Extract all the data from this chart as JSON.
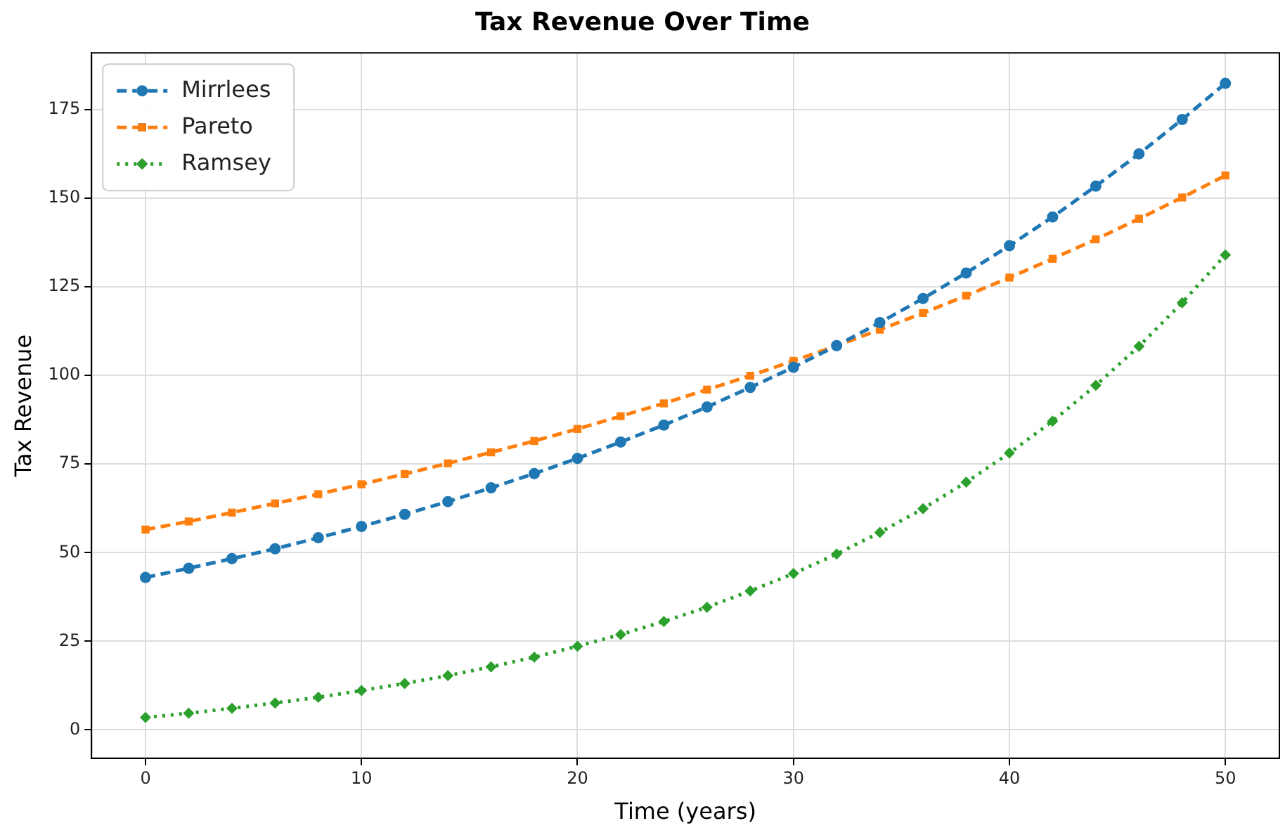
{
  "chart_data": {
    "type": "line",
    "title": "Tax Revenue Over Time",
    "xlabel": "Time (years)",
    "ylabel": "Tax Revenue",
    "x": [
      0,
      2,
      4,
      6,
      8,
      10,
      12,
      14,
      16,
      18,
      20,
      22,
      24,
      26,
      28,
      30,
      32,
      34,
      36,
      38,
      40,
      42,
      44,
      46,
      48,
      50
    ],
    "series": [
      {
        "name": "Mirrlees",
        "color": "#1f77b4",
        "marker": "circle",
        "line_style": "dashed",
        "values": [
          43.0,
          45.6,
          48.3,
          51.1,
          54.2,
          57.4,
          60.8,
          64.4,
          68.3,
          72.3,
          76.6,
          81.2,
          86.0,
          91.1,
          96.6,
          102.3,
          108.4,
          114.9,
          121.7,
          128.9,
          136.6,
          144.7,
          153.4,
          162.5,
          172.2,
          182.4
        ]
      },
      {
        "name": "Pareto",
        "color": "#ff7f0e",
        "marker": "square",
        "line_style": "dashed",
        "values": [
          56.5,
          58.8,
          61.3,
          63.9,
          66.5,
          69.3,
          72.2,
          75.2,
          78.3,
          81.5,
          84.9,
          88.5,
          92.1,
          96.0,
          99.9,
          104.1,
          108.4,
          112.9,
          117.6,
          122.5,
          127.6,
          132.9,
          138.4,
          144.2,
          150.2,
          156.4
        ]
      },
      {
        "name": "Ramsey",
        "color": "#2ca02c",
        "marker": "diamond",
        "line_style": "dotted",
        "values": [
          3.5,
          4.7,
          6.1,
          7.6,
          9.2,
          11.1,
          13.1,
          15.3,
          17.8,
          20.5,
          23.6,
          26.9,
          30.6,
          34.6,
          39.2,
          44.1,
          49.6,
          55.7,
          62.4,
          69.9,
          78.1,
          87.1,
          97.2,
          108.2,
          120.5,
          134.0
        ]
      }
    ],
    "xlim": [
      -2.5,
      52.5
    ],
    "xticks": [
      0,
      10,
      20,
      30,
      40,
      50
    ],
    "ylim": [
      -8,
      191
    ],
    "yticks": [
      0,
      25,
      50,
      75,
      100,
      125,
      150,
      175
    ],
    "grid": true,
    "legend": "top left"
  }
}
